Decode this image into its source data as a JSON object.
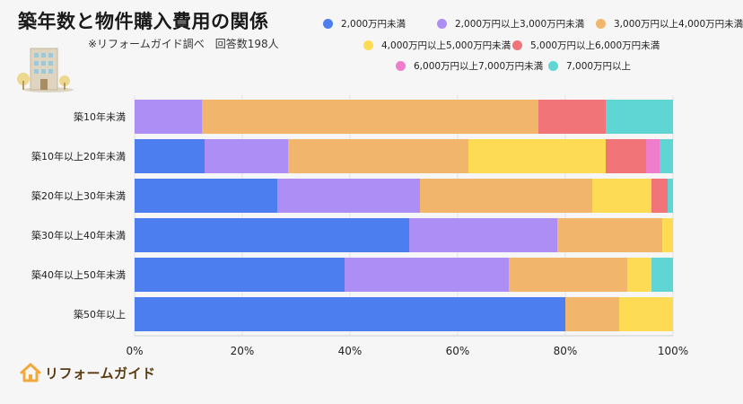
{
  "header": {
    "title": "築年数と物件購入費用の関係",
    "subtitle": "※リフォームガイド調べ　回答数198人"
  },
  "brand": {
    "name": "リフォームガイド",
    "icon": "house-logo-icon",
    "accent": "#f2a93b"
  },
  "chart_data": {
    "type": "bar",
    "orientation": "horizontal",
    "stacked": true,
    "categories": [
      "築10年未満",
      "築10年以上20年未満",
      "築20年以上30年未満",
      "築30年以上40年未満",
      "築40年以上50年未満",
      "築50年以上"
    ],
    "series": [
      {
        "name": "2,000万円未満",
        "color": "#4d7ef0",
        "values": [
          0,
          13,
          26.5,
          51,
          39,
          80
        ]
      },
      {
        "name": "2,000万円以上3,000万円未満",
        "color": "#ad8ef5",
        "values": [
          12.5,
          15.5,
          26.5,
          27.5,
          30.5,
          0
        ]
      },
      {
        "name": "3,000万円以上4,000万円未満",
        "color": "#f2b56c",
        "values": [
          62.5,
          33.5,
          32,
          19.5,
          22,
          10
        ]
      },
      {
        "name": "4,000万円以上5,000万円未満",
        "color": "#fddb55",
        "values": [
          0,
          25.5,
          11,
          2,
          4.5,
          10
        ]
      },
      {
        "name": "5,000万円以上6,000万円未満",
        "color": "#f07478",
        "values": [
          12.5,
          7.5,
          3,
          0,
          0,
          0
        ]
      },
      {
        "name": "6,000万円以上7,000万円未満",
        "color": "#ef7dcc",
        "values": [
          0,
          2.5,
          0,
          0,
          0,
          0
        ]
      },
      {
        "name": "7,000万円以上",
        "color": "#5fd6d4",
        "values": [
          12.5,
          2.5,
          1,
          0,
          4,
          0
        ]
      }
    ],
    "xlim": [
      0,
      100
    ],
    "xticks": [
      "0%",
      "20%",
      "40%",
      "60%",
      "80%",
      "100%"
    ],
    "grid": true,
    "legend": "top-right"
  }
}
